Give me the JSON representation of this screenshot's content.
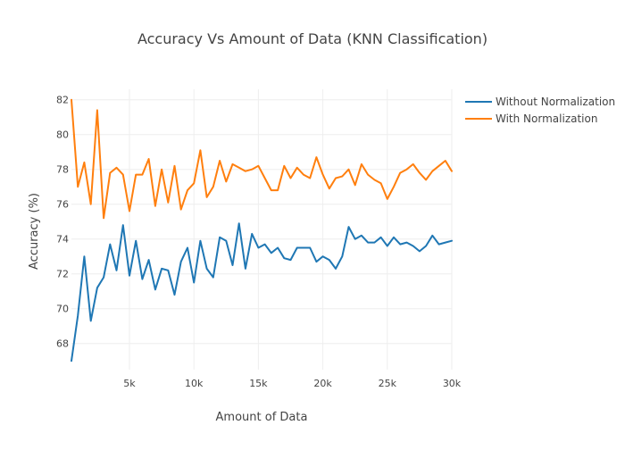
{
  "chart_data": {
    "type": "line",
    "title": "Accuracy Vs Amount of Data (KNN Classification)",
    "xlabel": "Amount of Data",
    "ylabel": "Accuracy (%)",
    "xlim": [
      500,
      30000
    ],
    "ylim": [
      66.5,
      82.6
    ],
    "grid": true,
    "legend_position": "top-right",
    "x_ticks": [
      {
        "value": 5000,
        "label": "5k"
      },
      {
        "value": 10000,
        "label": "10k"
      },
      {
        "value": 15000,
        "label": "15k"
      },
      {
        "value": 20000,
        "label": "20k"
      },
      {
        "value": 25000,
        "label": "25k"
      },
      {
        "value": 30000,
        "label": "30k"
      }
    ],
    "y_ticks": [
      {
        "value": 68,
        "label": "68"
      },
      {
        "value": 70,
        "label": "70"
      },
      {
        "value": 72,
        "label": "72"
      },
      {
        "value": 74,
        "label": "74"
      },
      {
        "value": 76,
        "label": "76"
      },
      {
        "value": 78,
        "label": "78"
      },
      {
        "value": 80,
        "label": "80"
      },
      {
        "value": 82,
        "label": "82"
      }
    ],
    "x": [
      500,
      1000,
      1500,
      2000,
      2500,
      3000,
      3500,
      4000,
      4500,
      5000,
      5500,
      6000,
      6500,
      7000,
      7500,
      8000,
      8500,
      9000,
      9500,
      10000,
      10500,
      11000,
      11500,
      12000,
      12500,
      13000,
      13500,
      14000,
      14500,
      15000,
      15500,
      16000,
      16500,
      17000,
      17500,
      18000,
      18500,
      19000,
      19500,
      20000,
      20500,
      21000,
      21500,
      22000,
      22500,
      23000,
      23500,
      24000,
      24500,
      25000,
      25500,
      26000,
      26500,
      27000,
      27500,
      28000,
      28500,
      29000,
      29500,
      30000
    ],
    "series": [
      {
        "name": "Without Normalization",
        "color": "#1f77b4",
        "values": [
          67.0,
          69.6,
          73.0,
          69.3,
          71.2,
          71.8,
          73.7,
          72.2,
          74.8,
          71.9,
          73.9,
          71.7,
          72.8,
          71.1,
          72.3,
          72.2,
          70.8,
          72.7,
          73.5,
          71.5,
          73.9,
          72.3,
          71.8,
          74.1,
          73.9,
          72.5,
          74.9,
          72.3,
          74.3,
          73.5,
          73.7,
          73.2,
          73.5,
          72.9,
          72.8,
          73.5,
          73.5,
          73.5,
          72.7,
          73.0,
          72.8,
          72.3,
          73.0,
          74.7,
          74.0,
          74.2,
          73.8,
          73.8,
          74.1,
          73.6,
          74.1,
          73.7,
          73.8,
          73.6,
          73.3,
          73.6,
          74.2,
          73.7,
          73.8,
          73.9
        ]
      },
      {
        "name": "With Normalization",
        "color": "#ff7f0e",
        "values": [
          82.0,
          77.0,
          78.4,
          76.0,
          81.4,
          75.2,
          77.8,
          78.1,
          77.7,
          75.6,
          77.7,
          77.7,
          78.6,
          75.9,
          78.0,
          76.1,
          78.2,
          75.7,
          76.8,
          77.2,
          79.1,
          76.4,
          77.0,
          78.5,
          77.3,
          78.3,
          78.1,
          77.9,
          78.0,
          78.2,
          77.5,
          76.8,
          76.8,
          78.2,
          77.5,
          78.1,
          77.7,
          77.5,
          78.7,
          77.7,
          76.9,
          77.5,
          77.6,
          78.0,
          77.1,
          78.3,
          77.7,
          77.4,
          77.2,
          76.3,
          77.0,
          77.8,
          78.0,
          78.3,
          77.8,
          77.4,
          77.9,
          78.2,
          78.5,
          77.9
        ]
      }
    ]
  }
}
